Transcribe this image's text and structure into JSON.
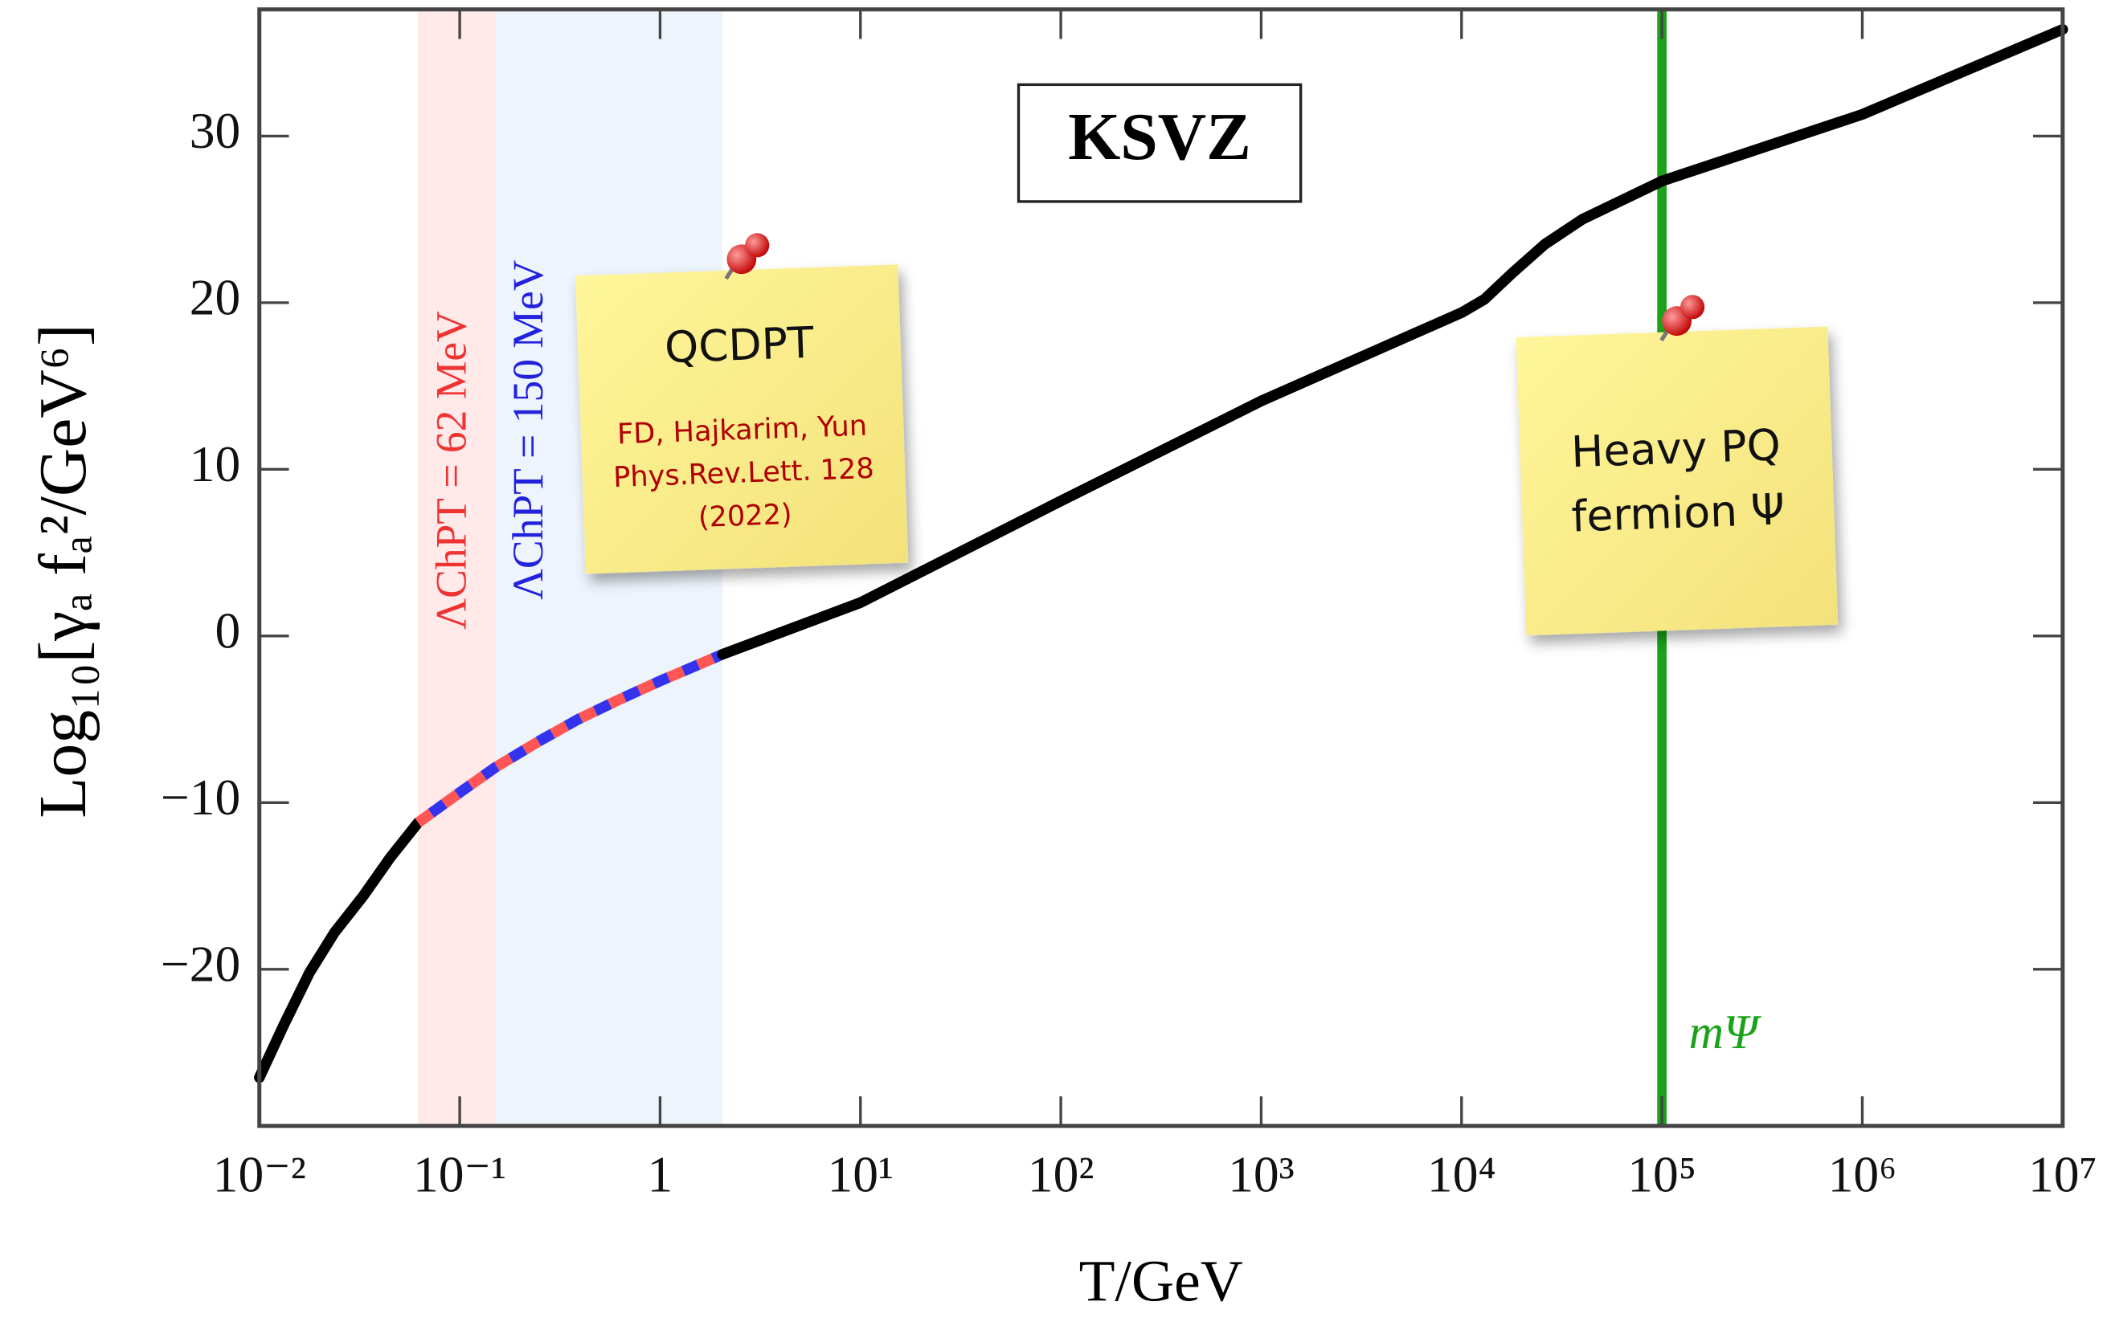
{
  "chart_data": {
    "type": "line",
    "title": "KSVZ",
    "x_label": "T/GeV",
    "y_label": "Log₁₀[γₐ fₐ²/GeV⁶]",
    "log_x": true,
    "xlim": [
      0.01,
      10000000
    ],
    "ylim": [
      -29.4,
      37.6
    ],
    "xticks": [
      {
        "value": 0.01,
        "label": "10⁻²"
      },
      {
        "value": 0.1,
        "label": "10⁻¹"
      },
      1,
      {
        "value": 10,
        "label": "10¹"
      },
      {
        "value": 100,
        "label": "10²"
      },
      {
        "value": 1000,
        "label": "10³"
      },
      {
        "value": 10000,
        "label": "10⁴"
      },
      {
        "value": 100000,
        "label": "10⁵"
      },
      {
        "value": 1000000,
        "label": "10⁶"
      },
      {
        "value": 10000000,
        "label": "10⁷"
      }
    ],
    "yticks": [
      {
        "value": -20,
        "label": "−20"
      },
      {
        "value": -10,
        "label": "−10"
      },
      0,
      10,
      20,
      30
    ],
    "series": [
      {
        "color": "#000000",
        "x": [
          0.01,
          0.0133,
          0.0178,
          0.0237,
          0.033,
          0.045,
          0.062
        ],
        "values": [
          -26.5,
          -23.3,
          -20.2,
          -17.8,
          -15.6,
          -13.3,
          -11.2
        ]
      },
      {
        "color": "#ff5555",
        "dash_color": "#3333ee",
        "x": [
          0.062,
          0.1,
          0.15,
          0.25,
          0.39,
          0.63,
          1,
          1.5,
          2.05
        ],
        "values": [
          -11.2,
          -9.4,
          -7.9,
          -6.3,
          -5.0,
          -3.8,
          -2.7,
          -1.8,
          -1.1
        ]
      },
      {
        "color": "#000000",
        "x": [
          2.05,
          10,
          100,
          1000,
          10000,
          13000,
          18000,
          26000,
          40000,
          100000,
          1000000,
          10000000
        ],
        "values": [
          -1.1,
          2.0,
          8.1,
          14.1,
          19.4,
          20.2,
          21.8,
          23.5,
          25.0,
          27.3,
          31.3,
          36.4
        ]
      }
    ],
    "bands": [
      {
        "from": 0.062,
        "to": 0.15,
        "color": "#ffe9e9",
        "label": "ΛChPT = 62 MeV",
        "label_color": "#ee3333"
      },
      {
        "from": 0.15,
        "to": 2.05,
        "color": "#eef4fc",
        "label": "ΛChPT = 150 MeV",
        "label_color": "#2222dd"
      }
    ],
    "vline": {
      "x": 100000,
      "color": "#1aa31a",
      "label": "mΨ"
    },
    "notes": [
      {
        "lines": [
          "QCDPT"
        ],
        "sublines": [
          "FD, Hajkarim, Yun",
          "Phys.Rev.Lett. 128",
          "(2022)"
        ]
      },
      {
        "lines": [
          "Heavy PQ",
          "fermion Ψ"
        ]
      }
    ]
  }
}
